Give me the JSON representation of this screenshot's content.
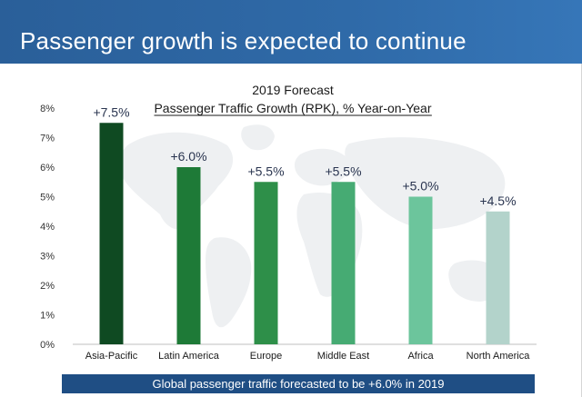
{
  "slide": {
    "title": "Passenger growth is expected to continue",
    "footer": "Global passenger traffic forecasted to be +6.0% in 2019"
  },
  "colors": {
    "banner": "#2f6aa8",
    "footer_bg": "#1f4e84",
    "map": "#eef0f2"
  },
  "chart_data": {
    "type": "bar",
    "title": "2019 Forecast",
    "subtitle": "Passenger Traffic Growth (RPK), % Year-on-Year",
    "xlabel": "",
    "ylabel": "",
    "ylim": [
      0,
      8
    ],
    "yticks": [
      "0%",
      "1%",
      "2%",
      "3%",
      "4%",
      "5%",
      "6%",
      "7%",
      "8%"
    ],
    "grid": false,
    "categories": [
      "Asia-Pacific",
      "Latin America",
      "Europe",
      "Middle East",
      "Africa",
      "North America"
    ],
    "values": [
      7.5,
      6.0,
      5.5,
      5.5,
      5.0,
      4.5
    ],
    "data_labels": [
      "+7.5%",
      "+6.0%",
      "+5.5%",
      "+5.5%",
      "+5.0%",
      "+4.5%"
    ],
    "bar_colors": [
      "#0f4a22",
      "#1e7a37",
      "#2e8f49",
      "#46ab73",
      "#6cc59c",
      "#b3d3cb"
    ]
  }
}
